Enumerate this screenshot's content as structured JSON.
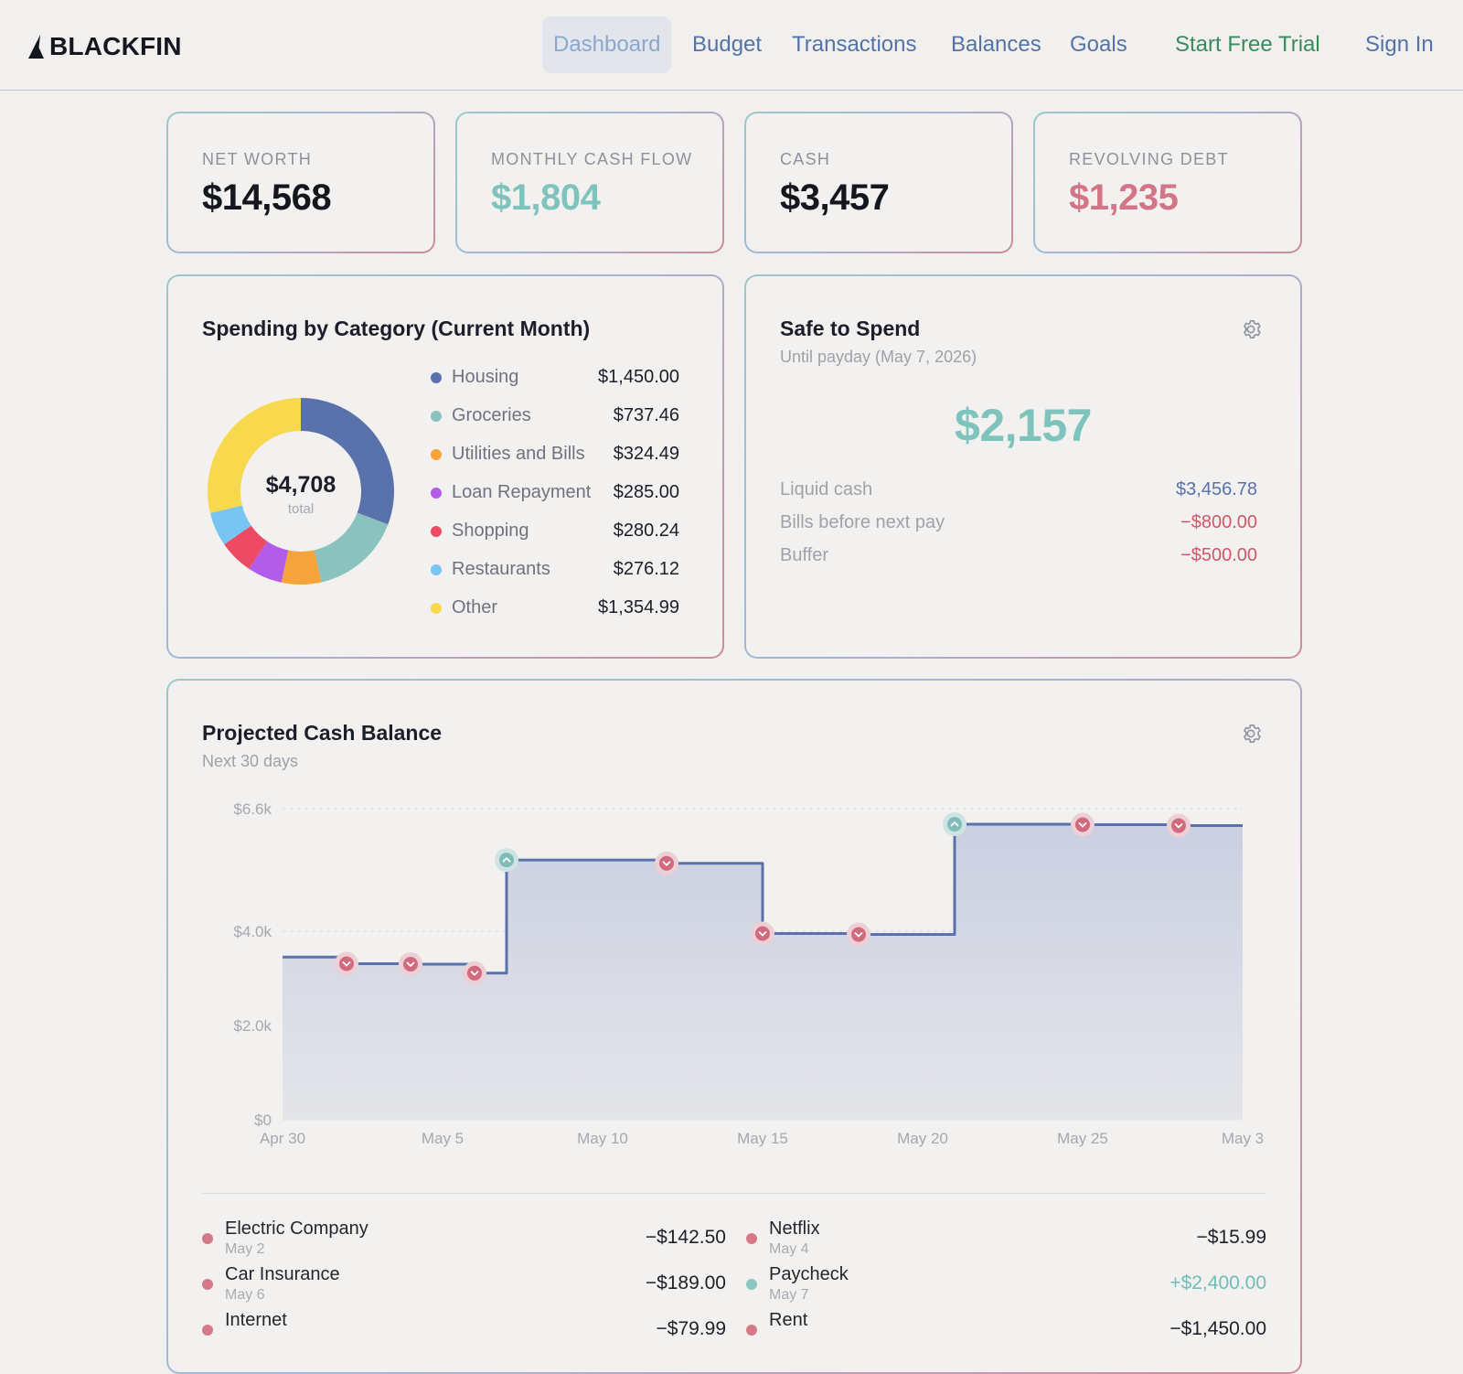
{
  "brand": {
    "name": "BLACKFIN"
  },
  "nav": {
    "items": [
      {
        "label": "Dashboard",
        "active": true
      },
      {
        "label": "Budget"
      },
      {
        "label": "Transactions"
      },
      {
        "label": "Balances"
      },
      {
        "label": "Goals"
      }
    ],
    "trial": "Start Free Trial",
    "signin": "Sign In"
  },
  "stats": [
    {
      "label": "NET WORTH",
      "value": "$14,568",
      "color": "#15171f"
    },
    {
      "label": "MONTHLY CASH FLOW",
      "value": "$1,804",
      "color": "#7fc3bd"
    },
    {
      "label": "CASH",
      "value": "$3,457",
      "color": "#15171f"
    },
    {
      "label": "REVOLVING DEBT",
      "value": "$1,235",
      "color": "#d37586"
    }
  ],
  "spending": {
    "title": "Spending by Category (Current Month)",
    "total": "$4,708",
    "total_label": "total",
    "categories": [
      {
        "name": "Housing",
        "amount": "$1,450.00",
        "value": 1450.0,
        "color": "#5a72ab"
      },
      {
        "name": "Groceries",
        "amount": "$737.46",
        "value": 737.46,
        "color": "#8cc2be"
      },
      {
        "name": "Utilities and Bills",
        "amount": "$324.49",
        "value": 324.49,
        "color": "#f4a43a"
      },
      {
        "name": "Loan Repayment",
        "amount": "$285.00",
        "value": 285.0,
        "color": "#b45cea"
      },
      {
        "name": "Shopping",
        "amount": "$280.24",
        "value": 280.24,
        "color": "#ec4b63"
      },
      {
        "name": "Restaurants",
        "amount": "$276.12",
        "value": 276.12,
        "color": "#78c4f2"
      },
      {
        "name": "Other",
        "amount": "$1,354.99",
        "value": 1354.99,
        "color": "#f8d84c"
      }
    ]
  },
  "safe": {
    "title": "Safe to Spend",
    "subtitle": "Until payday (May 7, 2026)",
    "amount": "$2,157",
    "rows": [
      {
        "label": "Liquid cash",
        "value": "$3,456.78",
        "color": "#5a72ab"
      },
      {
        "label": "Bills before next pay",
        "value": "−$800.00",
        "color": "#d0576a"
      },
      {
        "label": "Buffer",
        "value": "−$500.00",
        "color": "#d0576a"
      }
    ]
  },
  "projected": {
    "title": "Projected Cash Balance",
    "subtitle": "Next 30 days",
    "transactions": [
      {
        "name": "Electric Company",
        "date": "May 2",
        "amount": "−$142.50",
        "type": "out"
      },
      {
        "name": "Netflix",
        "date": "May 4",
        "amount": "−$15.99",
        "type": "out"
      },
      {
        "name": "Car Insurance",
        "date": "May 6",
        "amount": "−$189.00",
        "type": "out"
      },
      {
        "name": "Paycheck",
        "date": "May 7",
        "amount": "+$2,400.00",
        "type": "in"
      },
      {
        "name": "Internet",
        "date": "",
        "amount": "−$79.99",
        "type": "out"
      },
      {
        "name": "Rent",
        "date": "",
        "amount": "−$1,450.00",
        "type": "out"
      }
    ]
  },
  "chart_data": {
    "type": "area",
    "title": "Projected Cash Balance",
    "subtitle": "Next 30 days",
    "line_color": "#5a72ab",
    "x_ticks": [
      "Apr 30",
      "May 5",
      "May 10",
      "May 15",
      "May 20",
      "May 25",
      "May 3"
    ],
    "y_ticks": [
      "$0",
      "$2.0k",
      "$4.0k",
      "$6.6k"
    ],
    "ylim": [
      0,
      6600
    ],
    "xlim_days": [
      0,
      30
    ],
    "grid": true,
    "series": [
      {
        "x_day": [
          0,
          2,
          4,
          6,
          7,
          12,
          15,
          18,
          21,
          25,
          28,
          30
        ],
        "y": [
          3450,
          3310,
          3300,
          3110,
          5510,
          5440,
          3950,
          3930,
          6270,
          6260,
          6240,
          6240
        ]
      }
    ],
    "events": [
      {
        "x_day": 2,
        "y": 3310,
        "type": "out"
      },
      {
        "x_day": 4,
        "y": 3300,
        "type": "out"
      },
      {
        "x_day": 6,
        "y": 3110,
        "type": "out"
      },
      {
        "x_day": 7,
        "y": 5510,
        "type": "in"
      },
      {
        "x_day": 12,
        "y": 5440,
        "type": "out"
      },
      {
        "x_day": 15,
        "y": 3950,
        "type": "out"
      },
      {
        "x_day": 18,
        "y": 3930,
        "type": "out"
      },
      {
        "x_day": 21,
        "y": 6270,
        "type": "in"
      },
      {
        "x_day": 25,
        "y": 6260,
        "type": "out"
      },
      {
        "x_day": 28,
        "y": 6240,
        "type": "out"
      }
    ]
  }
}
